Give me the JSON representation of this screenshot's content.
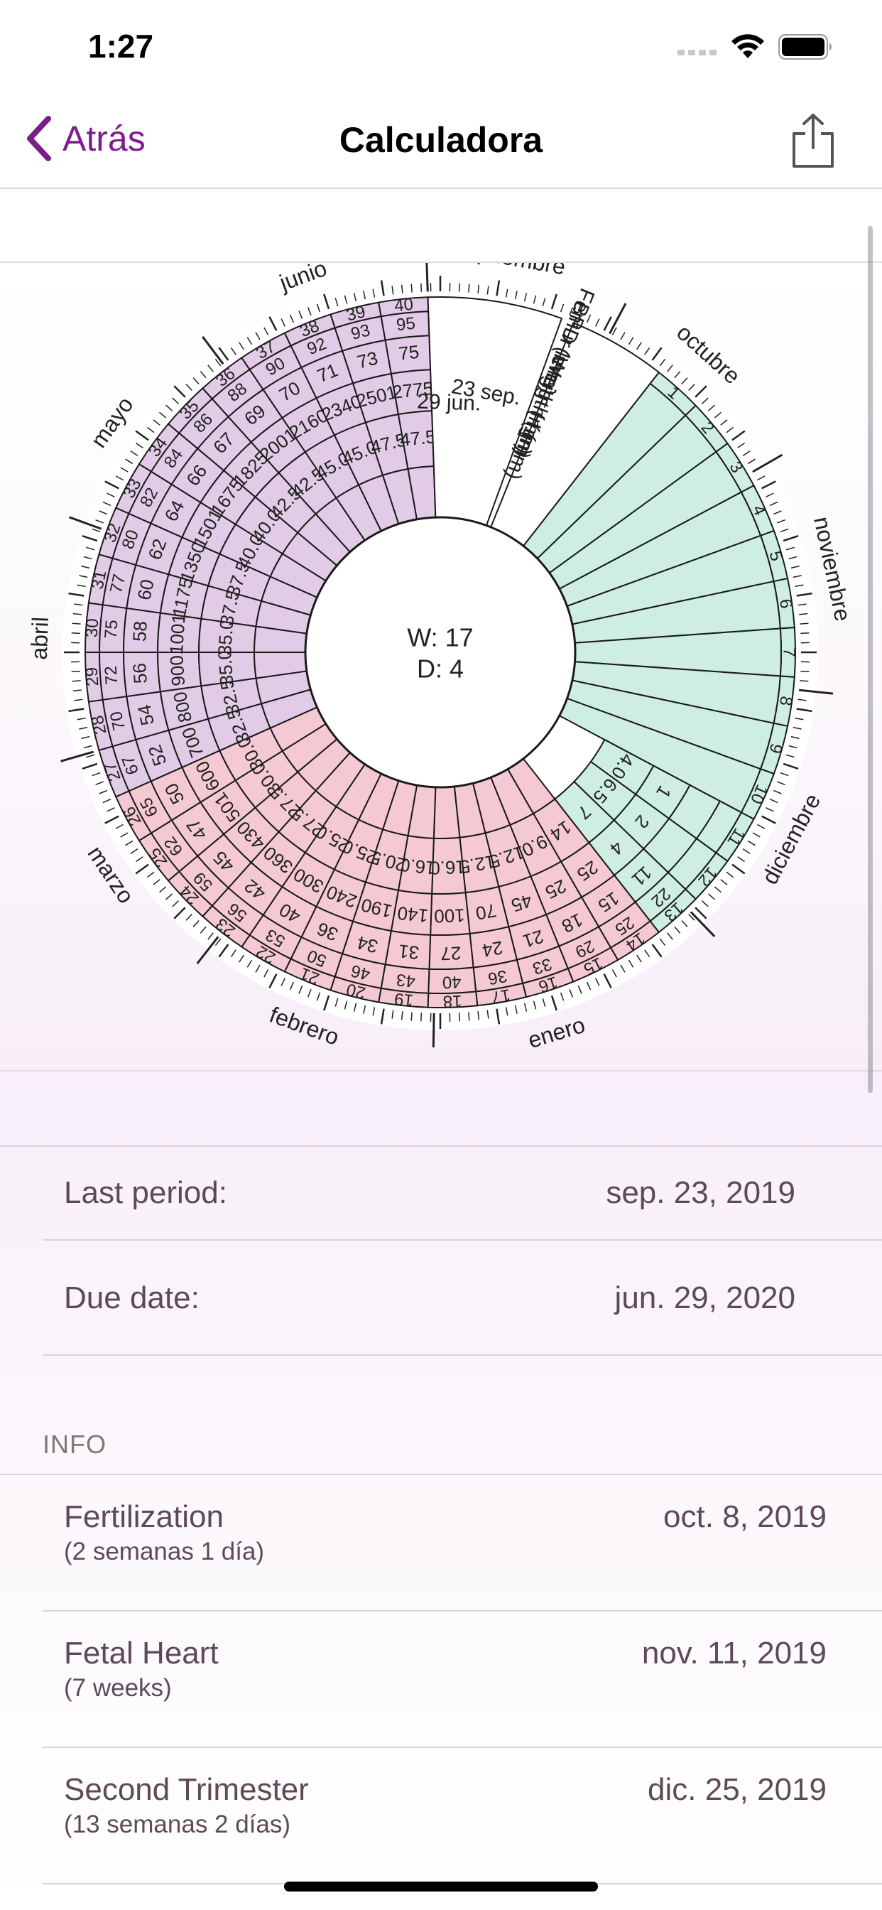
{
  "status_bar": {
    "time": "1:27"
  },
  "nav": {
    "back_label": "Atrás",
    "title": "Calculadora"
  },
  "wheel": {
    "center_week": "W: 17",
    "center_day": "D: 4",
    "due_date_label": "29 jun.",
    "last_period_label": "23 sep.",
    "band_labels": [
      "BPD (mm)",
      "Femur length (mm)",
      "Weigth (gr)",
      "H.(mm)"
    ],
    "months": [
      {
        "name": "septiembre",
        "angle": 10
      },
      {
        "name": "octubre",
        "angle": 42
      },
      {
        "name": "noviembre",
        "angle": 78
      },
      {
        "name": "diciembre",
        "angle": 118
      },
      {
        "name": "enero",
        "angle": 163
      },
      {
        "name": "febrero",
        "angle": 200
      },
      {
        "name": "marzo",
        "angle": 236
      },
      {
        "name": "abril",
        "angle": 272
      },
      {
        "name": "mayo",
        "angle": 305
      },
      {
        "name": "junio",
        "angle": 340
      }
    ],
    "weeks": [
      {
        "w": "1",
        "bpd": "",
        "femur": "",
        "weight": "",
        "h": ""
      },
      {
        "w": "2",
        "bpd": "",
        "femur": "",
        "weight": "",
        "h": ""
      },
      {
        "w": "3",
        "bpd": "",
        "femur": "",
        "weight": "",
        "h": ""
      },
      {
        "w": "4",
        "bpd": "",
        "femur": "",
        "weight": "",
        "h": ""
      },
      {
        "w": "5",
        "bpd": "",
        "femur": "",
        "weight": "",
        "h": ""
      },
      {
        "w": "6",
        "bpd": "",
        "femur": "",
        "weight": "",
        "h": ""
      },
      {
        "w": "7",
        "bpd": "",
        "femur": "",
        "weight": "",
        "h": ""
      },
      {
        "w": "8",
        "bpd": "",
        "femur": "",
        "weight": "",
        "h": ""
      },
      {
        "w": "9",
        "bpd": "",
        "femur": "",
        "weight": "",
        "h": ""
      },
      {
        "w": "10",
        "bpd": "",
        "femur": "",
        "weight": "",
        "h": ""
      },
      {
        "w": "11",
        "bpd": "",
        "femur": "",
        "weight": "1",
        "h": "4.0"
      },
      {
        "w": "12",
        "bpd": "",
        "femur": "",
        "weight": "2",
        "h": "6.5"
      },
      {
        "w": "13",
        "bpd": "22",
        "femur": "11",
        "weight": "4",
        "h": "7"
      },
      {
        "w": "14",
        "bpd": "25",
        "femur": "15",
        "weight": "25",
        "h": "14"
      },
      {
        "w": "15",
        "bpd": "29",
        "femur": "18",
        "weight": "25",
        "h": "9.0"
      },
      {
        "w": "16",
        "bpd": "33",
        "femur": "21",
        "weight": "45",
        "h": "12.5"
      },
      {
        "w": "17",
        "bpd": "36",
        "femur": "24",
        "weight": "70",
        "h": "12.5"
      },
      {
        "w": "18",
        "bpd": "40",
        "femur": "27",
        "weight": "100",
        "h": "16.0"
      },
      {
        "w": "19",
        "bpd": "43",
        "femur": "31",
        "weight": "140",
        "h": "16.0"
      },
      {
        "w": "20",
        "bpd": "46",
        "femur": "34",
        "weight": "190",
        "h": "20.5"
      },
      {
        "w": "21",
        "bpd": "50",
        "femur": "36",
        "weight": "240",
        "h": "25.0"
      },
      {
        "w": "22",
        "bpd": "53",
        "femur": "40",
        "weight": "300",
        "h": "25.0"
      },
      {
        "w": "23",
        "bpd": "56",
        "femur": "42",
        "weight": "360",
        "h": "27.5"
      },
      {
        "w": "24",
        "bpd": "59",
        "femur": "45",
        "weight": "430",
        "h": "27.5"
      },
      {
        "w": "25",
        "bpd": "62",
        "femur": "47",
        "weight": "501",
        "h": "30.0"
      },
      {
        "w": "26",
        "bpd": "65",
        "femur": "50",
        "weight": "600",
        "h": "30.0"
      },
      {
        "w": "27",
        "bpd": "67",
        "femur": "52",
        "weight": "700",
        "h": "32.5"
      },
      {
        "w": "28",
        "bpd": "70",
        "femur": "54",
        "weight": "800",
        "h": "32.5"
      },
      {
        "w": "29",
        "bpd": "72",
        "femur": "56",
        "weight": "900",
        "h": "35.0"
      },
      {
        "w": "30",
        "bpd": "75",
        "femur": "58",
        "weight": "1001",
        "h": "35.0"
      },
      {
        "w": "31",
        "bpd": "77",
        "femur": "60",
        "weight": "1175",
        "h": "37.5"
      },
      {
        "w": "32",
        "bpd": "80",
        "femur": "62",
        "weight": "1350",
        "h": "37.5"
      },
      {
        "w": "33",
        "bpd": "82",
        "femur": "64",
        "weight": "1501",
        "h": "40.0"
      },
      {
        "w": "34",
        "bpd": "84",
        "femur": "66",
        "weight": "1675",
        "h": "40.0"
      },
      {
        "w": "35",
        "bpd": "86",
        "femur": "67",
        "weight": "1825",
        "h": "42.5"
      },
      {
        "w": "36",
        "bpd": "88",
        "femur": "69",
        "weight": "2001",
        "h": "42.5"
      },
      {
        "w": "37",
        "bpd": "90",
        "femur": "70",
        "weight": "2160",
        "h": "45.0"
      },
      {
        "w": "38",
        "bpd": "92",
        "femur": "71",
        "weight": "2340",
        "h": "45.0"
      },
      {
        "w": "39",
        "bpd": "93",
        "femur": "73",
        "weight": "2501",
        "h": "47.5"
      },
      {
        "w": "40",
        "bpd": "95",
        "femur": "75",
        "weight": "2775",
        "h": "47.5"
      }
    ],
    "colors": {
      "green": "#cdeee0",
      "pink": "#f5c9d3",
      "purple": "#e2cbe6",
      "accent": "#7b1d8a"
    }
  },
  "dates": {
    "last_period_label": "Last period:",
    "last_period_value": "sep. 23, 2019",
    "due_date_label": "Due date:",
    "due_date_value": "jun. 29, 2020"
  },
  "info": {
    "header": "INFO",
    "items": [
      {
        "label": "Fertilization",
        "sub": "(2 semanas 1 día)",
        "value": "oct. 8, 2019"
      },
      {
        "label": "Fetal Heart",
        "sub": "(7 weeks)",
        "value": "nov. 11, 2019"
      },
      {
        "label": "Second Trimester",
        "sub": "(13 semanas 2 días)",
        "value": "dic. 25, 2019"
      }
    ]
  }
}
